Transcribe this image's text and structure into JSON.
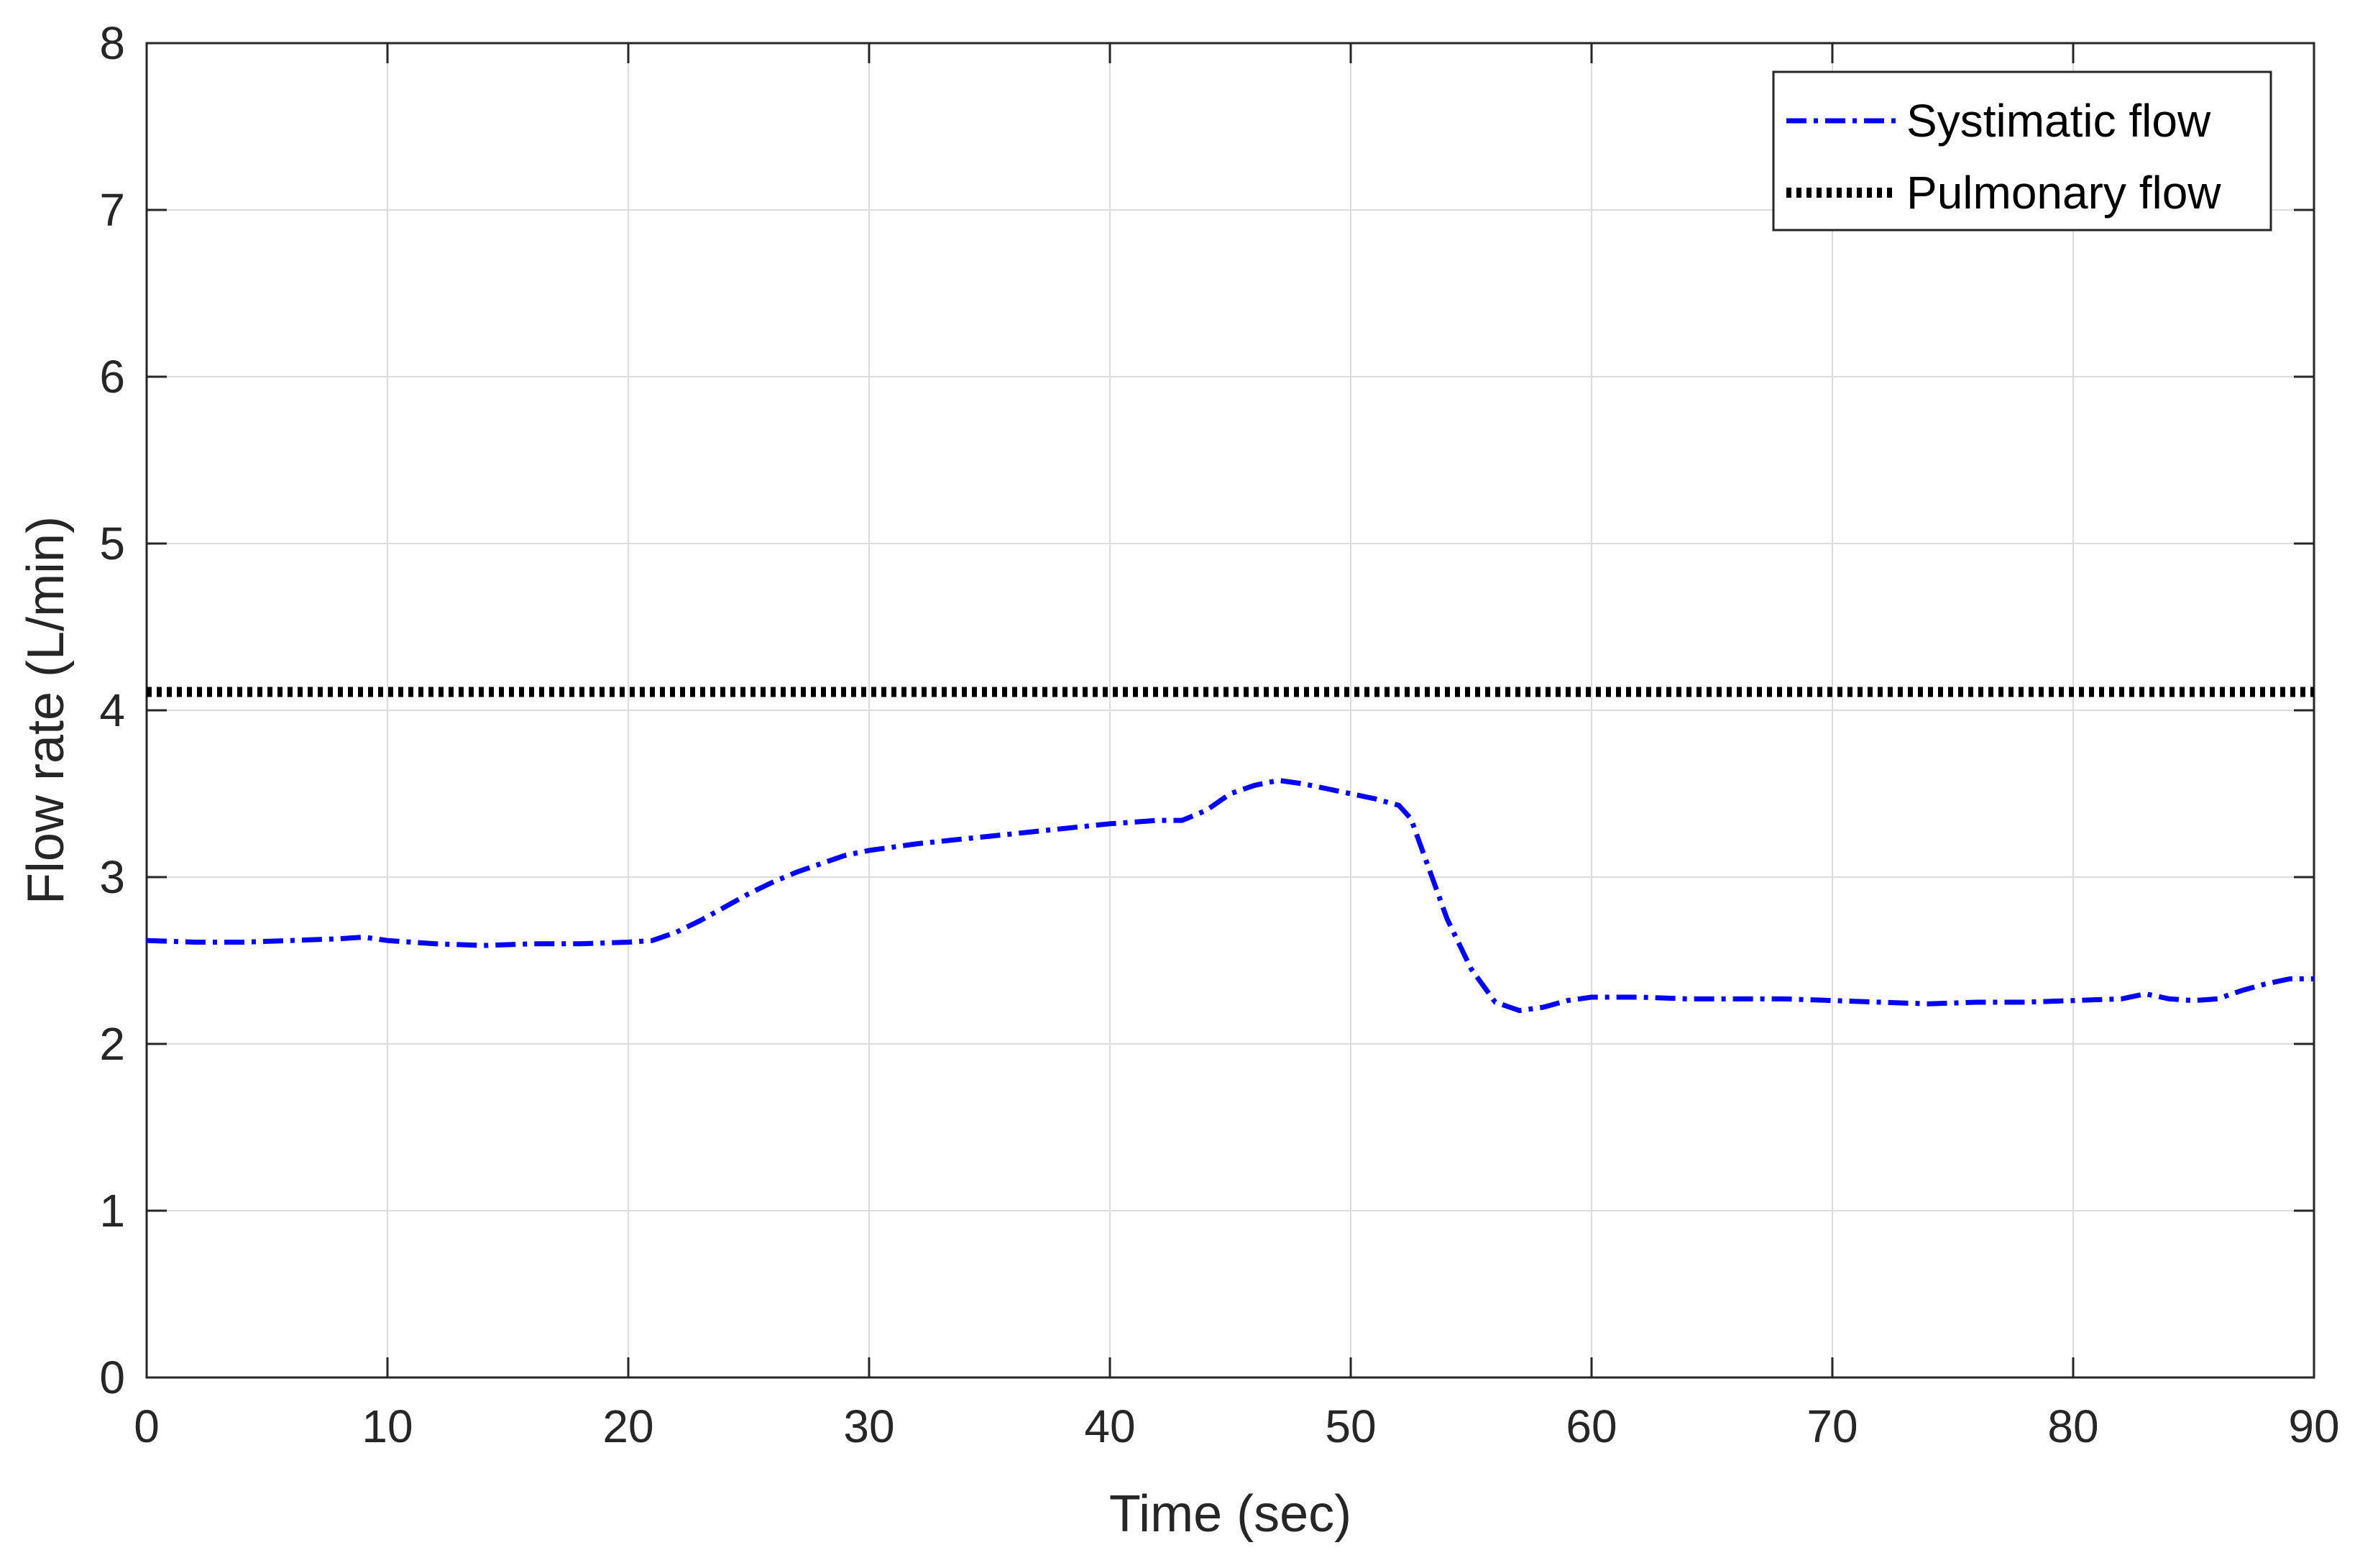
{
  "chart_data": {
    "type": "line",
    "title": "",
    "xlabel": "Time (sec)",
    "ylabel": "Flow rate (L/min)",
    "xlim": [
      0,
      90
    ],
    "ylim": [
      0,
      8
    ],
    "xticks": [
      0,
      10,
      20,
      30,
      40,
      50,
      60,
      70,
      80,
      90
    ],
    "yticks": [
      0,
      1,
      2,
      3,
      4,
      5,
      6,
      7,
      8
    ],
    "grid": true,
    "legend_position": "top-right",
    "series": [
      {
        "name": "Systimatic flow",
        "color": "#0000ff",
        "style": "dash-dot",
        "x": [
          0,
          2,
          4,
          6,
          8,
          9,
          10,
          12,
          14,
          16,
          18,
          20,
          21,
          22,
          23,
          24,
          25,
          26,
          27,
          28,
          29,
          30,
          32,
          34,
          36,
          38,
          40,
          42,
          43,
          44,
          45,
          46,
          47,
          48,
          49,
          50,
          51,
          52,
          52.5,
          53,
          53.5,
          54,
          55,
          56,
          57,
          58,
          59,
          60,
          62,
          64,
          66,
          68,
          70,
          72,
          74,
          76,
          78,
          80,
          82,
          83,
          84,
          85,
          86,
          87,
          88,
          89,
          90
        ],
        "y": [
          2.62,
          2.61,
          2.61,
          2.62,
          2.63,
          2.64,
          2.62,
          2.6,
          2.59,
          2.6,
          2.6,
          2.61,
          2.62,
          2.67,
          2.74,
          2.82,
          2.9,
          2.97,
          3.03,
          3.08,
          3.13,
          3.16,
          3.2,
          3.23,
          3.26,
          3.29,
          3.32,
          3.34,
          3.34,
          3.4,
          3.5,
          3.55,
          3.58,
          3.56,
          3.53,
          3.5,
          3.47,
          3.43,
          3.35,
          3.15,
          2.95,
          2.75,
          2.45,
          2.25,
          2.2,
          2.22,
          2.26,
          2.28,
          2.28,
          2.27,
          2.27,
          2.27,
          2.26,
          2.25,
          2.24,
          2.25,
          2.25,
          2.26,
          2.27,
          2.3,
          2.27,
          2.26,
          2.27,
          2.32,
          2.36,
          2.39,
          2.39
        ]
      },
      {
        "name": "Pulmonary flow",
        "color": "#000000",
        "style": "dotted",
        "x": [
          0,
          90
        ],
        "y": [
          4.11,
          4.11
        ]
      }
    ]
  }
}
